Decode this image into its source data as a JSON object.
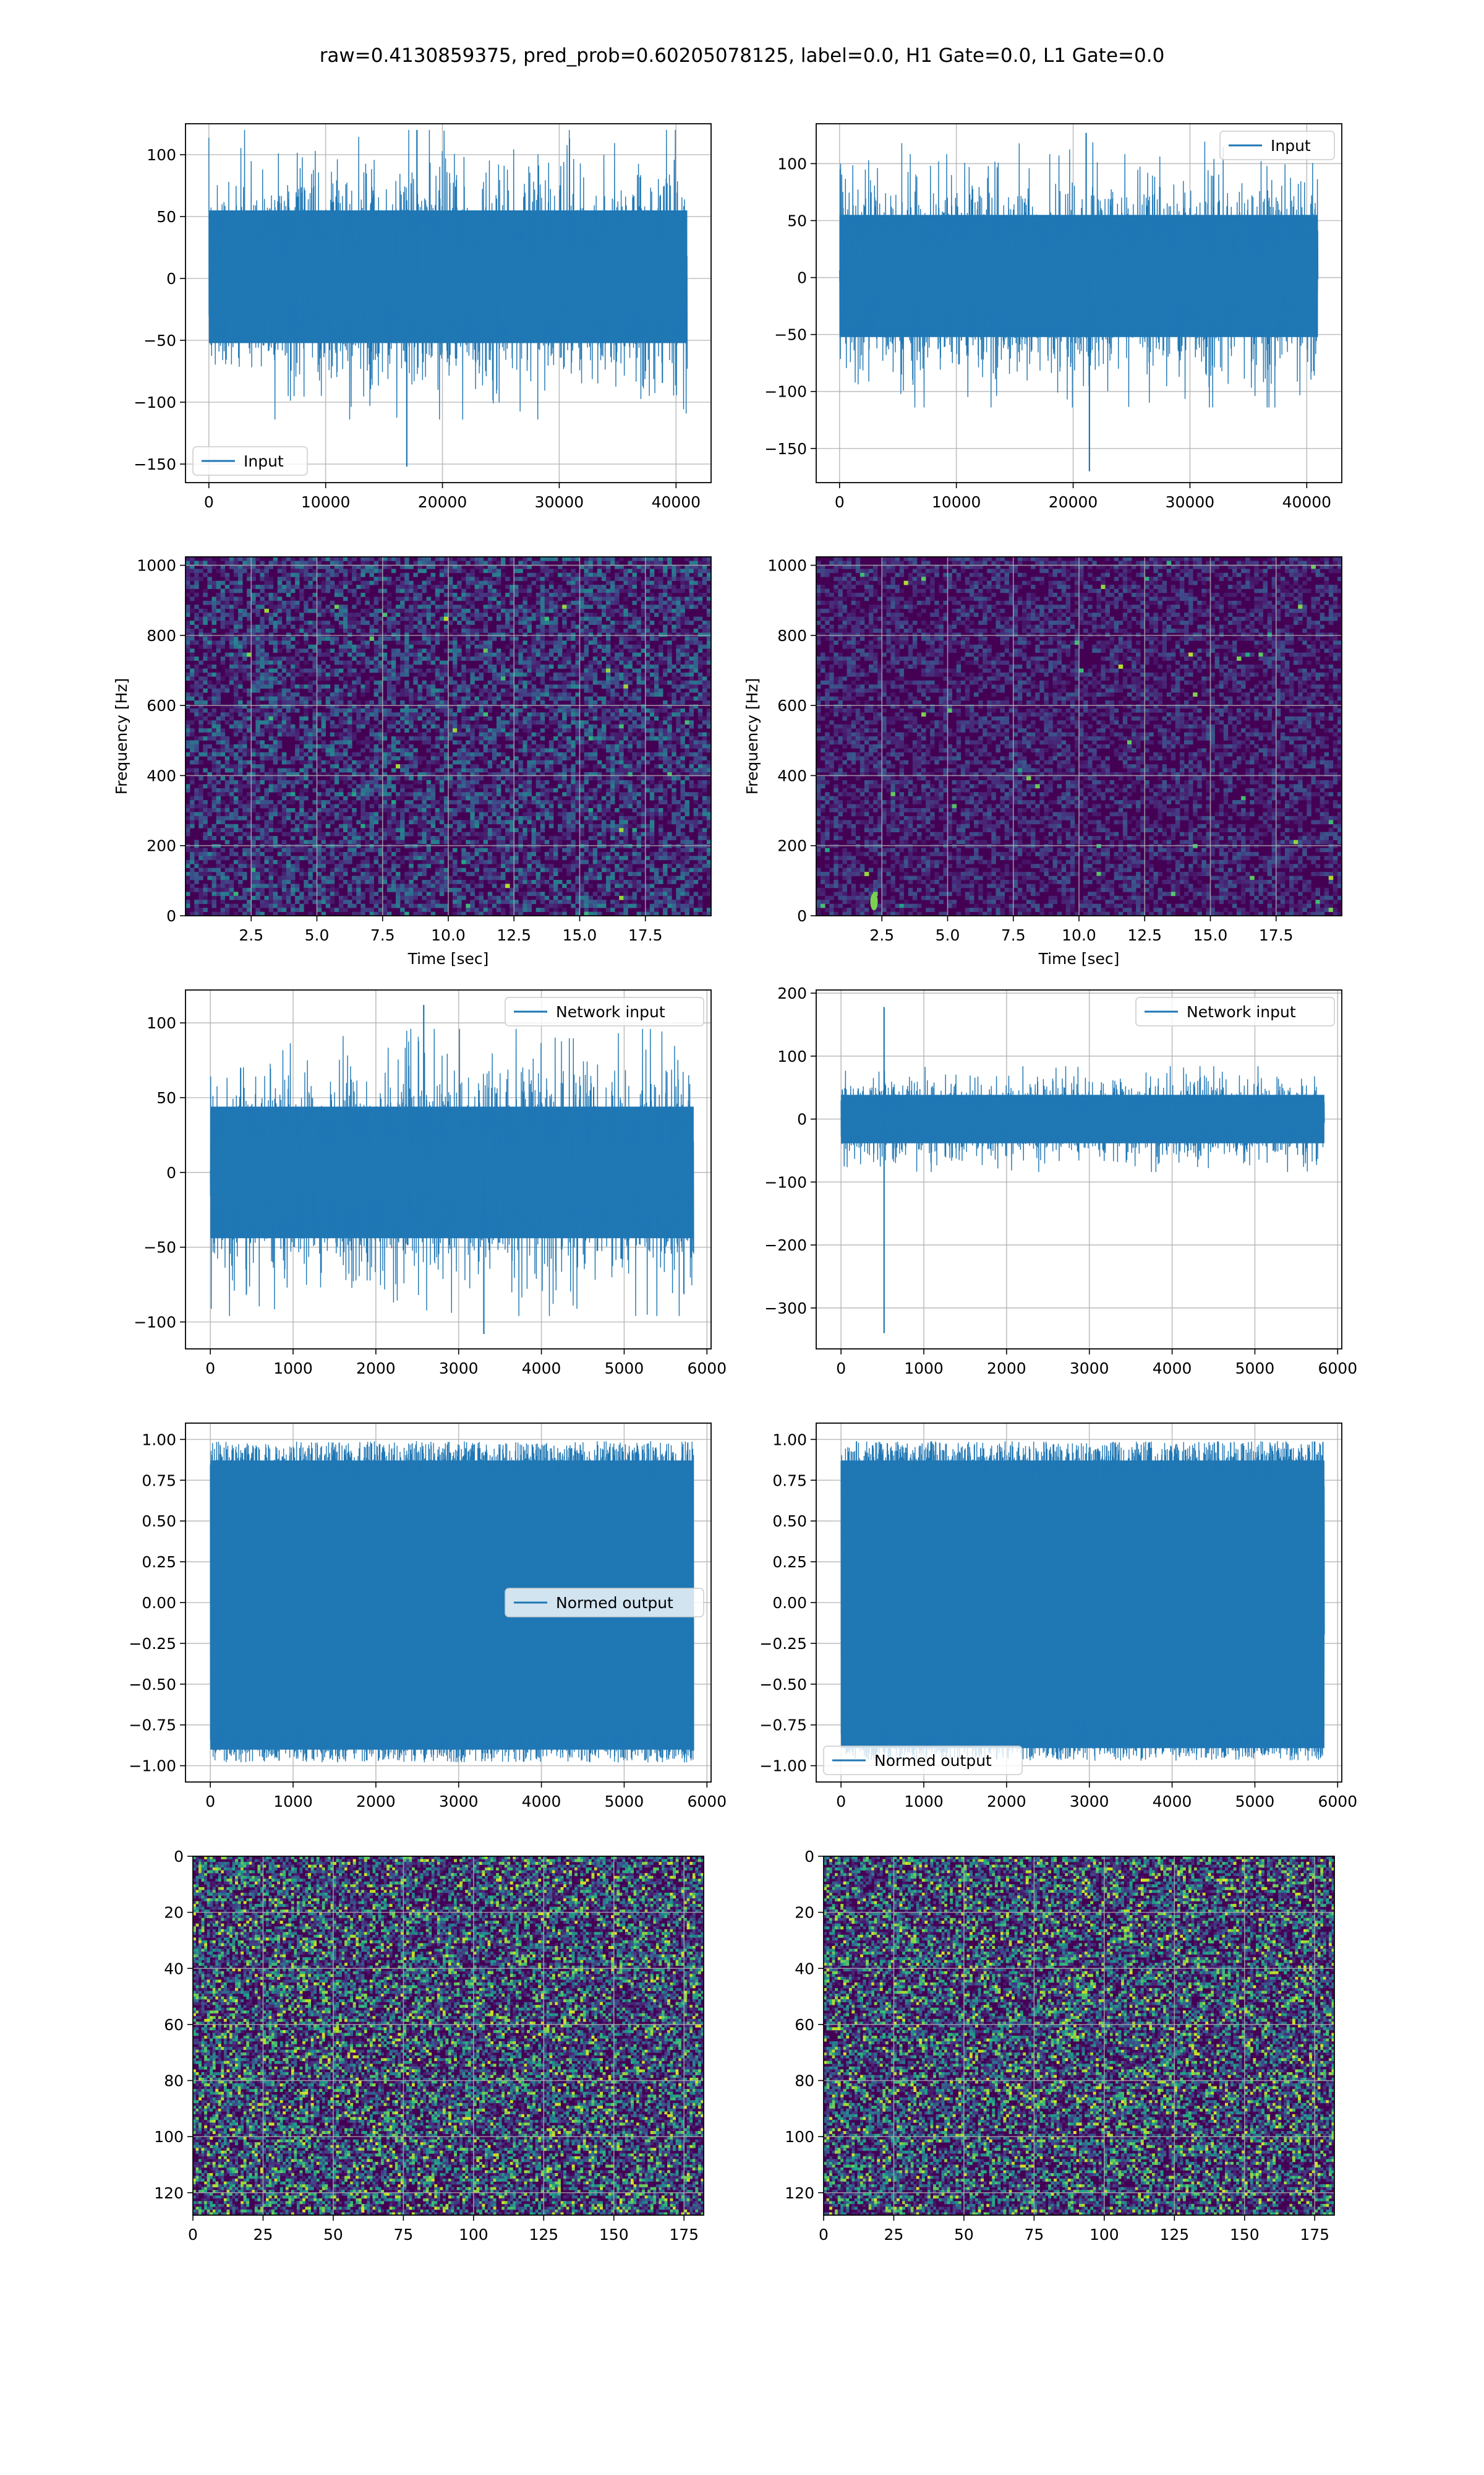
{
  "figure": {
    "suptitle": "raw=0.4130859375, pred_prob=0.60205078125, label=0.0, H1 Gate=0.0, L1 Gate=0.0"
  },
  "colors": {
    "line": "#1f77b4",
    "grid": "#b0b0b0",
    "viridis_low": "#440154",
    "viridis_high": "#fde725"
  },
  "chart_data": [
    {
      "id": "input-h1",
      "type": "line",
      "title": "",
      "xlabel": "",
      "ylabel": "",
      "xlim": [
        -2000,
        43000
      ],
      "ylim": [
        -165,
        125
      ],
      "xticks": [
        0,
        10000,
        20000,
        30000,
        40000
      ],
      "yticks": [
        -150,
        -100,
        -50,
        0,
        50,
        100
      ],
      "grid": true,
      "legend_loc": "lower left",
      "series": [
        {
          "name": "Input",
          "n_samples": 40960,
          "x_range": [
            0,
            40960
          ],
          "envelope": [
            -95,
            100
          ],
          "min": -152,
          "max": 120
        }
      ]
    },
    {
      "id": "input-l1",
      "type": "line",
      "title": "",
      "xlabel": "",
      "ylabel": "",
      "xlim": [
        -2000,
        43000
      ],
      "ylim": [
        -180,
        135
      ],
      "xticks": [
        0,
        10000,
        20000,
        30000,
        40000
      ],
      "yticks": [
        -150,
        -100,
        -50,
        0,
        50,
        100
      ],
      "grid": true,
      "legend_loc": "upper right",
      "series": [
        {
          "name": "Input",
          "n_samples": 40960,
          "x_range": [
            0,
            40960
          ],
          "envelope": [
            -95,
            100
          ],
          "min": -170,
          "max": 127
        }
      ]
    },
    {
      "id": "spectrogram-h1",
      "type": "heatmap",
      "xlabel": "Time [sec]",
      "ylabel": "Frequency [Hz]",
      "xlim": [
        0,
        20
      ],
      "ylim": [
        0,
        1024
      ],
      "xticks": [
        2.5,
        5.0,
        7.5,
        10.0,
        12.5,
        15.0,
        17.5
      ],
      "xtick_labels": [
        "2.5",
        "5.0",
        "7.5",
        "10.0",
        "12.5",
        "15.0",
        "17.5"
      ],
      "yticks": [
        0,
        200,
        400,
        600,
        800,
        1000
      ],
      "colormap": "viridis",
      "grid": true,
      "intensity": "medium"
    },
    {
      "id": "spectrogram-l1",
      "type": "heatmap",
      "xlabel": "Time [sec]",
      "ylabel": "Frequency [Hz]",
      "xlim": [
        0,
        20
      ],
      "ylim": [
        0,
        1024
      ],
      "xticks": [
        2.5,
        5.0,
        7.5,
        10.0,
        12.5,
        15.0,
        17.5
      ],
      "xtick_labels": [
        "2.5",
        "5.0",
        "7.5",
        "10.0",
        "12.5",
        "15.0",
        "17.5"
      ],
      "yticks": [
        0,
        200,
        400,
        600,
        800,
        1000
      ],
      "colormap": "viridis",
      "grid": true,
      "intensity": "low",
      "hotspot": {
        "time": 2.2,
        "freq": 40
      }
    },
    {
      "id": "network-input-h1",
      "type": "line",
      "xlim": [
        -300,
        6050
      ],
      "ylim": [
        -118,
        122
      ],
      "xticks": [
        0,
        1000,
        2000,
        3000,
        4000,
        5000,
        6000
      ],
      "yticks": [
        -100,
        -50,
        0,
        50,
        100
      ],
      "grid": true,
      "legend_loc": "upper right",
      "series": [
        {
          "name": "Network input",
          "n_samples": 5840,
          "x_range": [
            0,
            5840
          ],
          "envelope": [
            -80,
            80
          ],
          "min": -108,
          "max": 112
        }
      ]
    },
    {
      "id": "network-input-l1",
      "type": "line",
      "xlim": [
        -300,
        6050
      ],
      "ylim": [
        -365,
        205
      ],
      "xticks": [
        0,
        1000,
        2000,
        3000,
        4000,
        5000,
        6000
      ],
      "yticks": [
        -300,
        -200,
        -100,
        0,
        100,
        200
      ],
      "grid": true,
      "legend_loc": "upper right",
      "series": [
        {
          "name": "Network input",
          "n_samples": 5840,
          "x_range": [
            0,
            5840
          ],
          "envelope": [
            -70,
            70
          ],
          "min": -340,
          "max": 178,
          "spike_x": 520
        }
      ]
    },
    {
      "id": "normed-output-h1",
      "type": "line",
      "xlim": [
        -300,
        6050
      ],
      "ylim": [
        -1.1,
        1.1
      ],
      "xticks": [
        0,
        1000,
        2000,
        3000,
        4000,
        5000,
        6000
      ],
      "yticks": [
        -1.0,
        -0.75,
        -0.5,
        -0.25,
        0.0,
        0.25,
        0.5,
        0.75,
        1.0
      ],
      "ytick_labels": [
        "−1.00",
        "−0.75",
        "−0.50",
        "−0.25",
        "0.00",
        "0.25",
        "0.50",
        "0.75",
        "1.00"
      ],
      "grid": true,
      "legend_loc": "center right",
      "series": [
        {
          "name": "Normed output",
          "n_samples": 5840,
          "x_range": [
            0,
            5840
          ],
          "envelope": [
            -0.98,
            0.99
          ]
        }
      ]
    },
    {
      "id": "normed-output-l1",
      "type": "line",
      "xlim": [
        -300,
        6050
      ],
      "ylim": [
        -1.1,
        1.1
      ],
      "xticks": [
        0,
        1000,
        2000,
        3000,
        4000,
        5000,
        6000
      ],
      "yticks": [
        -1.0,
        -0.75,
        -0.5,
        -0.25,
        0.0,
        0.25,
        0.5,
        0.75,
        1.0
      ],
      "ytick_labels": [
        "−1.00",
        "−0.75",
        "−0.50",
        "−0.25",
        "0.00",
        "0.25",
        "0.50",
        "0.75",
        "1.00"
      ],
      "grid": true,
      "legend_loc": "lower left",
      "series": [
        {
          "name": "Normed output",
          "n_samples": 5840,
          "x_range": [
            0,
            5840
          ],
          "envelope": [
            -0.97,
            0.99
          ]
        }
      ]
    },
    {
      "id": "matrix-h1",
      "type": "heatmap",
      "xlim": [
        0,
        182
      ],
      "ylim": [
        128,
        0
      ],
      "xticks": [
        0,
        25,
        50,
        75,
        100,
        125,
        150,
        175
      ],
      "yticks": [
        0,
        20,
        40,
        60,
        80,
        100,
        120
      ],
      "colormap": "viridis",
      "grid": true,
      "n_cols": 182,
      "n_rows": 128
    },
    {
      "id": "matrix-l1",
      "type": "heatmap",
      "xlim": [
        0,
        182
      ],
      "ylim": [
        128,
        0
      ],
      "xticks": [
        0,
        25,
        50,
        75,
        100,
        125,
        150,
        175
      ],
      "yticks": [
        0,
        20,
        40,
        60,
        80,
        100,
        120
      ],
      "colormap": "viridis",
      "grid": true,
      "n_cols": 182,
      "n_rows": 128
    }
  ]
}
